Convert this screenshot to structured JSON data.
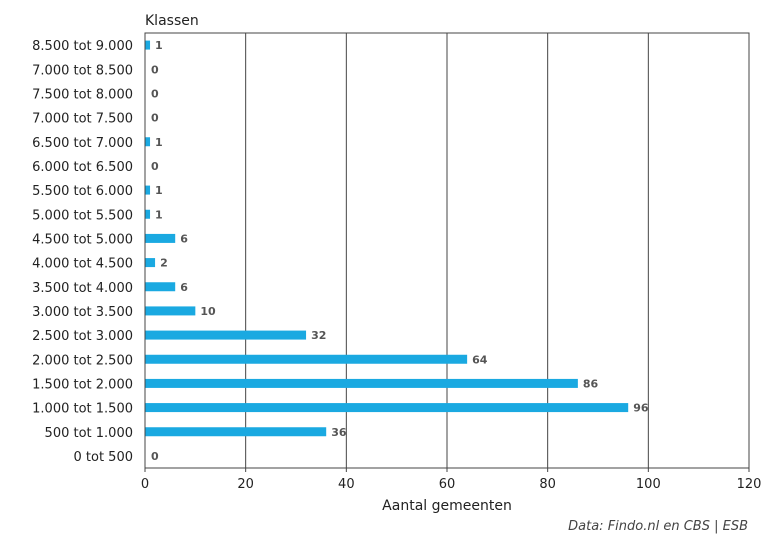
{
  "header": {
    "title_fragment": ""
  },
  "chart_data": {
    "type": "bar",
    "orientation": "horizontal",
    "categories": [
      "8.500 tot 9.000",
      "7.000 tot 8.500",
      "7.500 tot 8.000",
      "7.000 tot 7.500",
      "6.500 tot 7.000",
      "6.000 tot 6.500",
      "5.500 tot 6.000",
      "5.000 tot 5.500",
      "4.500 tot 5.000",
      "4.000 tot 4.500",
      "3.500 tot 4.000",
      "3.000 tot 3.500",
      "2.500 tot 3.000",
      "2.000 tot 2.500",
      "1.500 tot 2.000",
      "1.000 tot 1.500",
      "500 tot 1.000",
      "0 tot 500"
    ],
    "values": [
      1,
      0,
      0,
      0,
      1,
      0,
      1,
      1,
      6,
      2,
      6,
      10,
      32,
      64,
      86,
      96,
      36,
      0
    ],
    "ylabel": "Klassen",
    "xlabel": "Aantal gemeenten",
    "xlim": [
      0,
      120
    ],
    "xticks": [
      0,
      20,
      40,
      60,
      80,
      100,
      120
    ],
    "grid": "vertical",
    "bar_color": "#1aa9e1",
    "data_label_color": "#555555",
    "source": "Data: Findo.nl en CBS | ESB"
  },
  "colors": {
    "accent": "#1aa9e1",
    "title": "#1a7fb0"
  }
}
